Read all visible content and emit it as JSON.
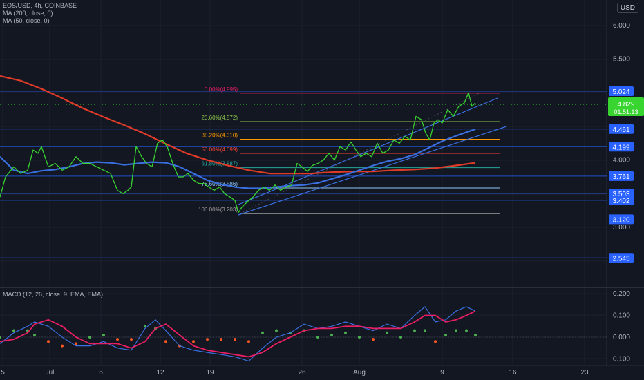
{
  "header": {
    "symbol_line": "EOS/USD, 4h, COINBASE",
    "ma200_label": "MA (200, close, 0)",
    "ma50_label": "MA (50, close, 0)",
    "macd_label": "MACD (12, 26, close, 9, EMA, EMA)",
    "currency": "USD"
  },
  "colors": {
    "background": "#131722",
    "price": "#38d430",
    "ma200": "#e03b28",
    "ma50": "#3a6fe0",
    "macd_line": "#3a6fe0",
    "signal_line": "#e91e63",
    "hist_up": "#4caf50",
    "hist_down": "#ff5722",
    "hline": "#2962ff"
  },
  "chart_data": {
    "type": "line",
    "title": "EOS/USD, 4h, COINBASE",
    "x_axis": {
      "ticks": [
        "5",
        "Jul",
        "6",
        "12",
        "19",
        "26",
        "Aug",
        "9",
        "16",
        "23"
      ]
    },
    "price_axis": {
      "ticks": [
        "6.000",
        "5.500",
        "4.000",
        "3.000"
      ],
      "range": [
        2.35,
        6.4
      ],
      "highlighted": [
        "5.024",
        "4.461",
        "4.199",
        "3.761",
        "3.503",
        "3.402",
        "2.545",
        "3.120"
      ]
    },
    "current_price": {
      "value": "4.829",
      "countdown": "01:51:13"
    },
    "horizontal_lines": [
      5.024,
      4.461,
      4.199,
      3.761,
      3.503,
      3.402,
      2.545
    ],
    "fib_levels": [
      {
        "label": "0.00%(4.995)",
        "value": 4.995,
        "color": "#e91e63"
      },
      {
        "label": "23.60%(4.572)",
        "value": 4.572,
        "color": "#8bc34a"
      },
      {
        "label": "38.20%(4.310)",
        "value": 4.31,
        "color": "#ff9800"
      },
      {
        "label": "50.00%(4.099)",
        "value": 4.099,
        "color": "#f44336"
      },
      {
        "label": "61.80%(3.887)",
        "value": 3.887,
        "color": "#26a69a"
      },
      {
        "label": "78.60%(3.586)",
        "value": 3.586,
        "color": "#90caf9"
      },
      {
        "label": "100.00%(3.203)",
        "value": 3.203,
        "color": "#9e9e9e"
      }
    ],
    "series": [
      {
        "name": "EOS/USD",
        "x": [
          0,
          8,
          20,
          30,
          40,
          48,
          55,
          60,
          70,
          80,
          90,
          100,
          110,
          120,
          130,
          140,
          150,
          160,
          170,
          178,
          185,
          190,
          197,
          205,
          212,
          220,
          228,
          235,
          242,
          250,
          258,
          265,
          272,
          280,
          288,
          295,
          302,
          310,
          318,
          325,
          333,
          340,
          345,
          350,
          358,
          366,
          374,
          382,
          390,
          398,
          406,
          414,
          422,
          430,
          437,
          445,
          452,
          460,
          468,
          476,
          484,
          492,
          500,
          508,
          515,
          522,
          530,
          538,
          546,
          554,
          562,
          570,
          578,
          586,
          594,
          602,
          610,
          616,
          622,
          628,
          634,
          640,
          648,
          656,
          664,
          672,
          678,
          683,
          688
        ],
        "values": [
          3.45,
          3.75,
          3.9,
          3.8,
          3.85,
          4.15,
          4.1,
          4.2,
          3.9,
          3.95,
          3.85,
          3.9,
          4.05,
          3.95,
          3.95,
          3.9,
          3.85,
          3.8,
          3.55,
          3.5,
          3.55,
          3.6,
          4.2,
          4.05,
          3.95,
          3.9,
          4.25,
          4.3,
          4.2,
          3.95,
          3.75,
          3.75,
          3.8,
          3.7,
          3.65,
          3.65,
          3.6,
          3.55,
          3.6,
          3.5,
          3.45,
          3.4,
          3.22,
          3.3,
          3.38,
          3.45,
          3.55,
          3.6,
          3.55,
          3.63,
          3.55,
          3.6,
          3.63,
          3.95,
          3.9,
          3.83,
          3.92,
          3.95,
          4.0,
          4.1,
          4.0,
          4.2,
          4.15,
          4.27,
          4.15,
          4.05,
          4.1,
          4.05,
          4.25,
          4.1,
          4.15,
          4.3,
          4.25,
          4.35,
          4.3,
          4.65,
          4.6,
          4.4,
          4.3,
          4.55,
          4.6,
          4.55,
          4.75,
          4.65,
          4.8,
          4.85,
          5.0,
          4.8,
          4.85
        ]
      },
      {
        "name": "MA (200, close, 0)",
        "x": [
          0,
          30,
          60,
          90,
          120,
          150,
          180,
          210,
          240,
          270,
          300,
          330,
          360,
          390,
          420,
          450,
          480,
          510,
          540,
          570,
          600,
          630,
          660,
          688
        ],
        "values": [
          5.25,
          5.18,
          5.06,
          4.92,
          4.77,
          4.64,
          4.52,
          4.39,
          4.24,
          4.1,
          4.0,
          3.92,
          3.85,
          3.8,
          3.8,
          3.8,
          3.82,
          3.83,
          3.83,
          3.85,
          3.86,
          3.88,
          3.92,
          3.96
        ]
      },
      {
        "name": "MA (50, close, 0)",
        "x": [
          0,
          20,
          40,
          60,
          80,
          100,
          120,
          140,
          160,
          180,
          200,
          220,
          240,
          260,
          280,
          300,
          320,
          340,
          360,
          380,
          400,
          420,
          440,
          460,
          480,
          500,
          520,
          540,
          560,
          580,
          600,
          620,
          640,
          660,
          688
        ],
        "values": [
          4.05,
          3.85,
          3.8,
          3.84,
          3.86,
          3.9,
          3.95,
          3.97,
          3.96,
          3.93,
          3.95,
          3.97,
          3.96,
          3.9,
          3.8,
          3.7,
          3.64,
          3.6,
          3.58,
          3.58,
          3.6,
          3.62,
          3.63,
          3.66,
          3.72,
          3.78,
          3.85,
          3.92,
          3.98,
          4.02,
          4.08,
          4.18,
          4.28,
          4.36,
          4.46
        ]
      }
    ],
    "macd": {
      "ticks": [
        "0.200",
        "0.100",
        "0.000",
        "-0.100"
      ],
      "range": [
        -0.12,
        0.21
      ],
      "x": [
        0,
        20,
        40,
        50,
        70,
        90,
        110,
        130,
        150,
        170,
        190,
        210,
        225,
        240,
        260,
        280,
        300,
        320,
        340,
        360,
        380,
        400,
        420,
        440,
        460,
        480,
        500,
        520,
        540,
        560,
        580,
        600,
        615,
        630,
        645,
        660,
        675,
        688
      ],
      "macd_line": [
        -0.03,
        0.02,
        0.05,
        0.07,
        0.05,
        0.0,
        -0.04,
        -0.04,
        -0.02,
        -0.05,
        -0.06,
        0.04,
        0.08,
        0.03,
        -0.04,
        -0.06,
        -0.07,
        -0.08,
        -0.09,
        -0.11,
        -0.05,
        0.0,
        0.02,
        0.06,
        0.04,
        0.05,
        0.07,
        0.05,
        0.03,
        0.06,
        0.04,
        0.1,
        0.14,
        0.07,
        0.08,
        0.12,
        0.14,
        0.12
      ],
      "signal_line": [
        -0.02,
        -0.01,
        0.02,
        0.06,
        0.08,
        0.05,
        0.0,
        -0.03,
        -0.03,
        -0.03,
        -0.05,
        -0.02,
        0.04,
        0.06,
        0.01,
        -0.04,
        -0.06,
        -0.07,
        -0.08,
        -0.09,
        -0.07,
        -0.03,
        0.0,
        0.03,
        0.04,
        0.04,
        0.05,
        0.05,
        0.04,
        0.04,
        0.04,
        0.07,
        0.1,
        0.1,
        0.07,
        0.08,
        0.1,
        0.12
      ],
      "histogram": [
        0.0,
        0.03,
        0.03,
        0.01,
        -0.02,
        -0.04,
        -0.03,
        0.0,
        0.01,
        -0.01,
        -0.01,
        0.05,
        0.04,
        -0.02,
        -0.04,
        -0.02,
        -0.01,
        -0.01,
        -0.01,
        -0.02,
        0.02,
        0.03,
        0.02,
        0.03,
        0.0,
        0.01,
        0.02,
        0.0,
        -0.01,
        0.02,
        0.0,
        0.03,
        0.03,
        -0.02,
        0.01,
        0.03,
        0.03,
        0.01
      ]
    }
  }
}
